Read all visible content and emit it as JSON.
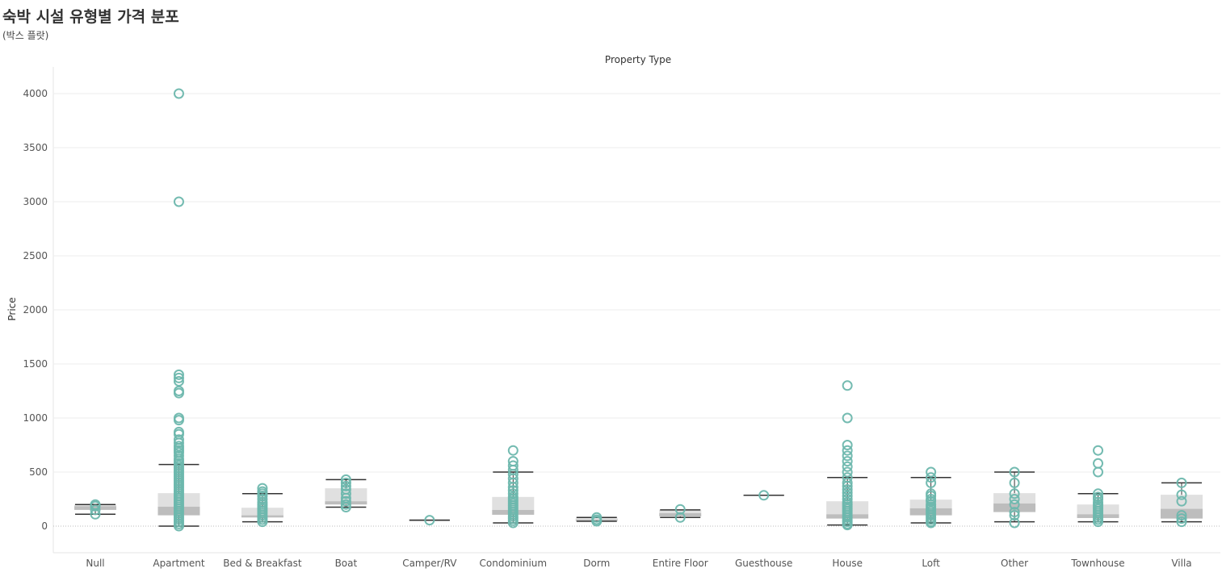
{
  "header": {
    "title": "숙박 시설 유형별 가격 분포",
    "subtitle": "(박스 플랏)"
  },
  "chart_data": {
    "type": "box",
    "column_header": "Property Type",
    "ylabel": "Price",
    "ylim": [
      -250,
      4250
    ],
    "yticks": [
      0,
      500,
      1000,
      1500,
      2000,
      2500,
      3000,
      3500,
      4000
    ],
    "grid": true,
    "colors": {
      "marker": "#6db7ad",
      "whisker": "#333333",
      "box_upper": "#e0e0e0",
      "box_lower": "#bdbdbd",
      "grid": "#eeeeee"
    },
    "categories": [
      "Null",
      "Apartment",
      "Bed & Breakfast",
      "Boat",
      "Camper/RV",
      "Condominium",
      "Dorm",
      "Entire Floor",
      "Guesthouse",
      "House",
      "Loft",
      "Other",
      "Townhouse",
      "Villa"
    ],
    "boxes": [
      {
        "whisker_low": 110,
        "q1": 150,
        "median": 185,
        "q3": 200,
        "whisker_high": 200,
        "points": [
          110,
          150,
          185,
          200
        ]
      },
      {
        "whisker_low": 0,
        "q1": 100,
        "median": 180,
        "q3": 305,
        "whisker_high": 570,
        "points": [
          4000,
          3000,
          1400,
          1370,
          1340,
          1250,
          1230,
          1000,
          980,
          870,
          850,
          800,
          770,
          740,
          720,
          700,
          680,
          650,
          620,
          600,
          580,
          560,
          540,
          520,
          500,
          480,
          460,
          440,
          420,
          400,
          380,
          360,
          340,
          320,
          300,
          280,
          260,
          240,
          220,
          200,
          180,
          160,
          140,
          120,
          100,
          80,
          60,
          40,
          20,
          0
        ]
      },
      {
        "whisker_low": 40,
        "q1": 80,
        "median": 100,
        "q3": 170,
        "whisker_high": 300,
        "points": [
          350,
          320,
          300,
          280,
          250,
          220,
          200,
          180,
          160,
          140,
          120,
          100,
          80,
          60,
          40
        ]
      },
      {
        "whisker_low": 175,
        "q1": 200,
        "median": 230,
        "q3": 350,
        "whisker_high": 430,
        "points": [
          430,
          400,
          370,
          340,
          300,
          260,
          230,
          200,
          175
        ]
      },
      {
        "whisker_low": 55,
        "q1": 55,
        "median": 55,
        "q3": 55,
        "whisker_high": 55,
        "points": [
          55
        ]
      },
      {
        "whisker_low": 30,
        "q1": 105,
        "median": 150,
        "q3": 270,
        "whisker_high": 500,
        "points": [
          700,
          600,
          560,
          520,
          480,
          440,
          400,
          360,
          330,
          300,
          270,
          250,
          230,
          210,
          190,
          170,
          150,
          130,
          110,
          90,
          70,
          50,
          30
        ]
      },
      {
        "whisker_low": 45,
        "q1": 50,
        "median": 60,
        "q3": 75,
        "whisker_high": 80,
        "points": [
          80,
          60,
          45
        ]
      },
      {
        "whisker_low": 80,
        "q1": 90,
        "median": 120,
        "q3": 150,
        "whisker_high": 150,
        "points": [
          155,
          80
        ]
      },
      {
        "whisker_low": 285,
        "q1": 285,
        "median": 285,
        "q3": 285,
        "whisker_high": 285,
        "points": [
          285
        ]
      },
      {
        "whisker_low": 10,
        "q1": 70,
        "median": 110,
        "q3": 230,
        "whisker_high": 450,
        "points": [
          1300,
          1000,
          750,
          700,
          650,
          600,
          550,
          500,
          450,
          400,
          370,
          340,
          310,
          280,
          250,
          220,
          200,
          180,
          160,
          140,
          120,
          100,
          80,
          60,
          40,
          20,
          10
        ]
      },
      {
        "whisker_low": 30,
        "q1": 100,
        "median": 165,
        "q3": 245,
        "whisker_high": 450,
        "points": [
          500,
          450,
          400,
          300,
          280,
          250,
          230,
          200,
          180,
          160,
          140,
          120,
          100,
          80,
          60,
          40,
          30
        ]
      },
      {
        "whisker_low": 40,
        "q1": 130,
        "median": 210,
        "q3": 305,
        "whisker_high": 500,
        "points": [
          500,
          400,
          300,
          250,
          200,
          130,
          100,
          30
        ]
      },
      {
        "whisker_low": 40,
        "q1": 75,
        "median": 110,
        "q3": 200,
        "whisker_high": 300,
        "points": [
          700,
          580,
          500,
          300,
          270,
          250,
          220,
          200,
          180,
          160,
          140,
          120,
          100,
          80,
          60,
          40
        ]
      },
      {
        "whisker_low": 40,
        "q1": 70,
        "median": 160,
        "q3": 290,
        "whisker_high": 400,
        "points": [
          400,
          290,
          230,
          100,
          70,
          40
        ]
      }
    ]
  }
}
